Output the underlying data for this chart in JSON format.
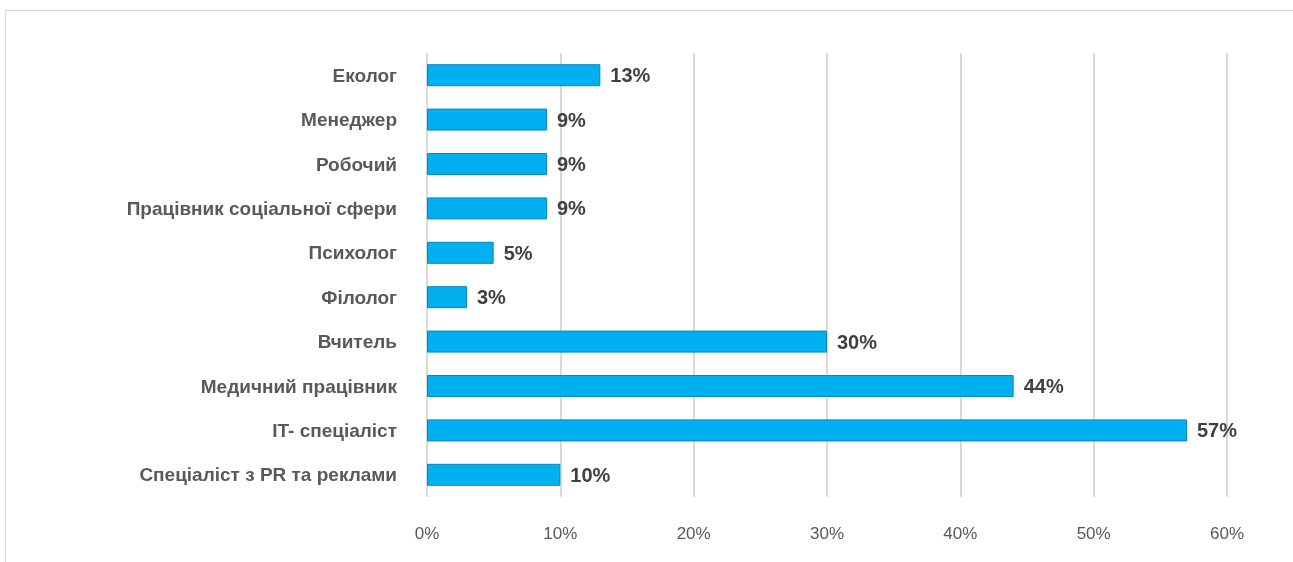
{
  "chart_data": {
    "type": "bar",
    "orientation": "horizontal",
    "categories": [
      "Еколог",
      "Менеджер",
      "Робочий",
      "Працівник соціальної сфери",
      "Психолог",
      "Філолог",
      "Вчитель",
      "Медичний працівник",
      "IT- спеціаліст",
      "Спеціаліст з PR та реклами"
    ],
    "values": [
      13,
      9,
      9,
      9,
      5,
      3,
      30,
      44,
      57,
      10
    ],
    "value_labels": [
      "13%",
      "9%",
      "9%",
      "9%",
      "5%",
      "3%",
      "30%",
      "44%",
      "57%",
      "10%"
    ],
    "color": "#00b0f0",
    "xlim": [
      0,
      60
    ],
    "xticks": [
      {
        "value": 0,
        "label": "0%"
      },
      {
        "value": 10,
        "label": "10%"
      },
      {
        "value": 20,
        "label": "20%"
      },
      {
        "value": 30,
        "label": "30%"
      },
      {
        "value": 40,
        "label": "40%"
      },
      {
        "value": 50,
        "label": "50%"
      },
      {
        "value": 60,
        "label": "60%"
      }
    ],
    "grid": "x"
  }
}
